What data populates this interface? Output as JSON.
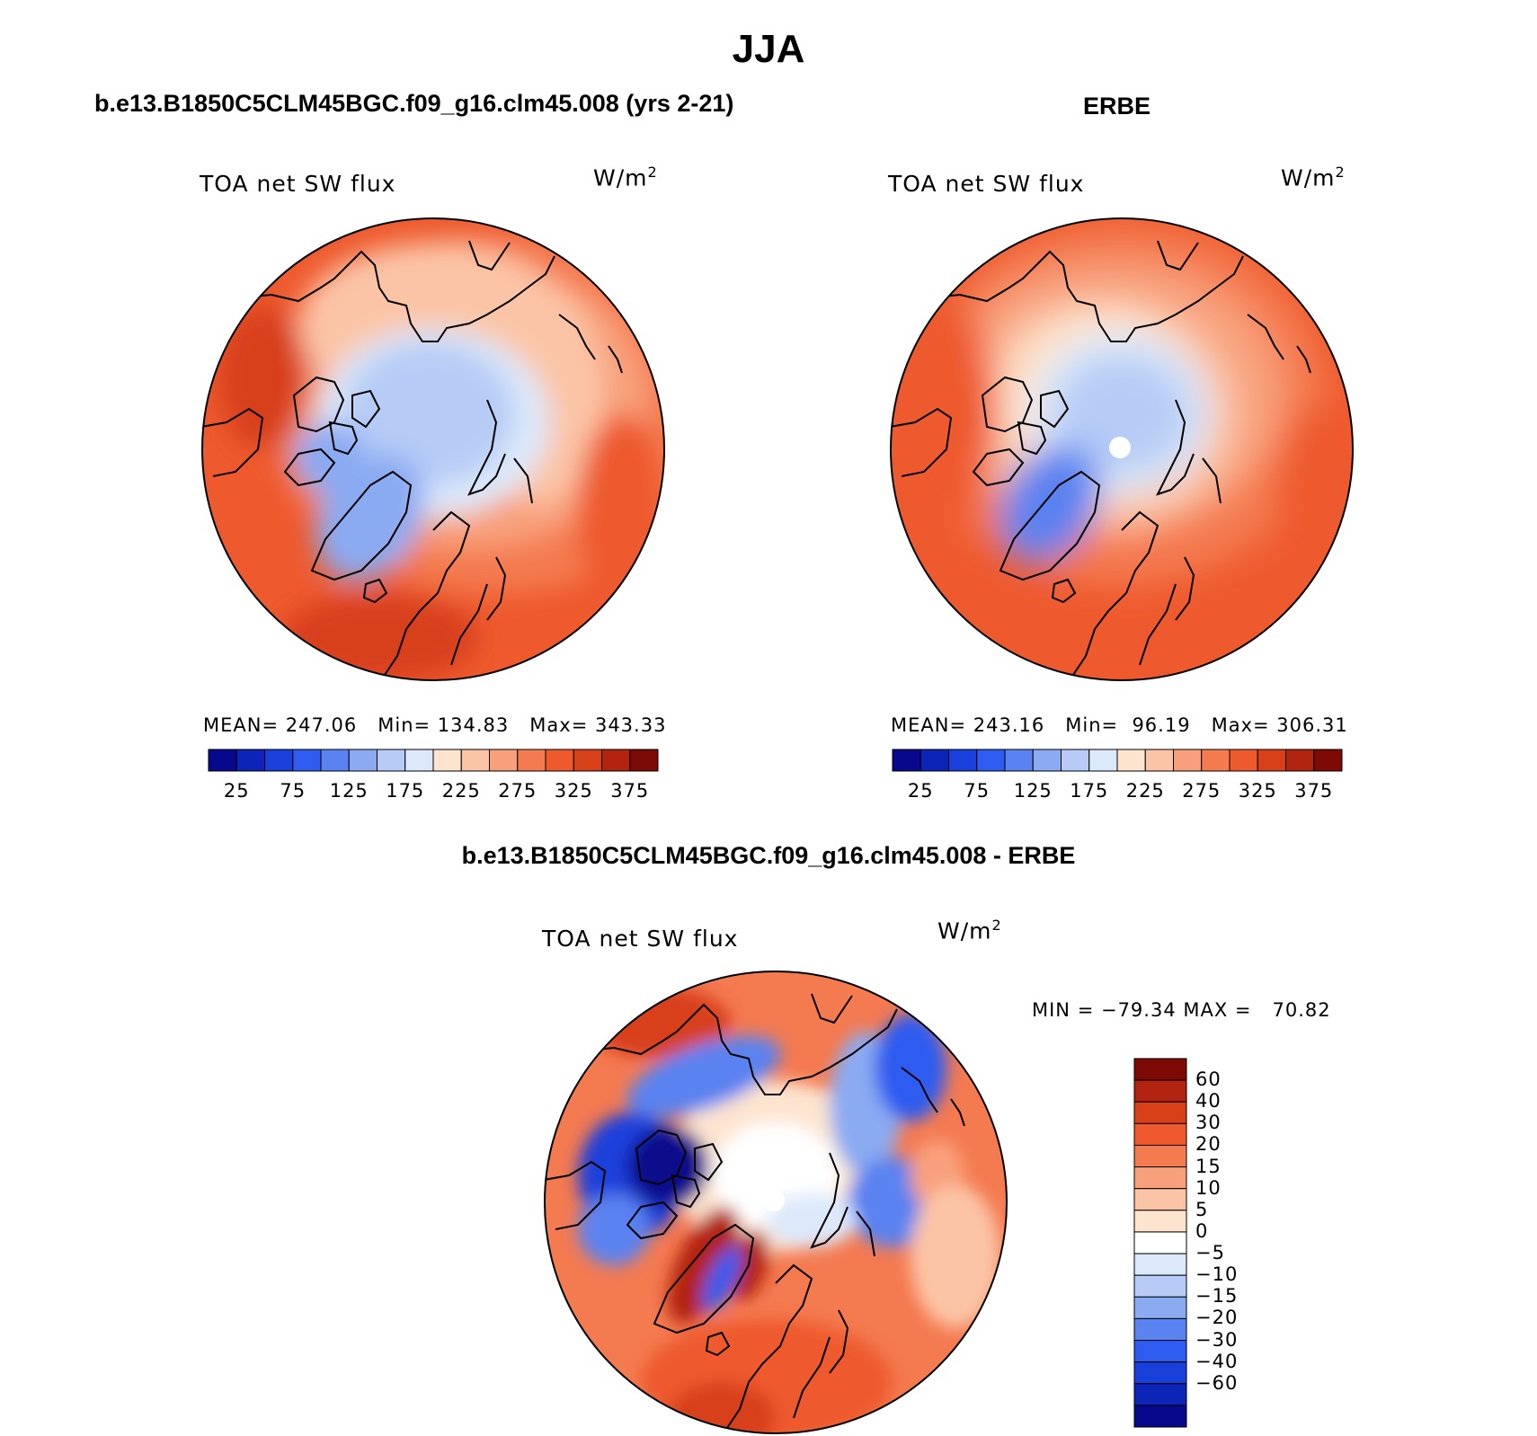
{
  "title": "JJA",
  "panels": [
    {
      "id": "model",
      "subtitle": "b.e13.B1850C5CLM45BGC.f09_g16.clm45.008 (yrs 2-21)",
      "label": "TOA net SW flux",
      "units": "W/m",
      "units_exp": "2",
      "stats": "MEAN= 247.06   Min= 134.83   Max= 343.33",
      "colorbar_ticks": [
        "25",
        "75",
        "125",
        "175",
        "225",
        "275",
        "325",
        "375"
      ]
    },
    {
      "id": "obs",
      "subtitle": "ERBE",
      "label": "TOA net SW flux",
      "units": "W/m",
      "units_exp": "2",
      "stats": "MEAN= 243.16   Min=  96.19   Max= 306.31",
      "colorbar_ticks": [
        "25",
        "75",
        "125",
        "175",
        "225",
        "275",
        "325",
        "375"
      ]
    }
  ],
  "difference": {
    "subtitle": "b.e13.B1850C5CLM45BGC.f09_g16.clm45.008 - ERBE",
    "label": "TOA net SW flux",
    "units": "W/m",
    "units_exp": "2",
    "stats": "MIN = −79.34 MAX =   70.82",
    "colorbar_labels": [
      "60",
      "40",
      "30",
      "20",
      "15",
      "10",
      "5",
      "0",
      "−5",
      "−10",
      "−15",
      "−20",
      "−30",
      "−40",
      "−60"
    ]
  },
  "colors": {
    "abs_scale": [
      "#08088c",
      "#0c24b8",
      "#1a40dc",
      "#2e5cf0",
      "#5a82f0",
      "#8aaaf2",
      "#b6ccf6",
      "#dce9fa",
      "#fde4cf",
      "#fbc4a6",
      "#f8a07c",
      "#f47a50",
      "#ee5a2e",
      "#d8401a",
      "#b22410",
      "#7e0a06"
    ],
    "diff_scale": [
      "#7e0a06",
      "#b22410",
      "#d8401a",
      "#ee5a2e",
      "#f47a50",
      "#f8a07c",
      "#fbc4a6",
      "#fde4cf",
      "#ffffff",
      "#dce9fa",
      "#b6ccf6",
      "#8aaaf2",
      "#5a82f0",
      "#2e5cf0",
      "#1a40dc",
      "#0c24b8",
      "#08088c"
    ]
  }
}
